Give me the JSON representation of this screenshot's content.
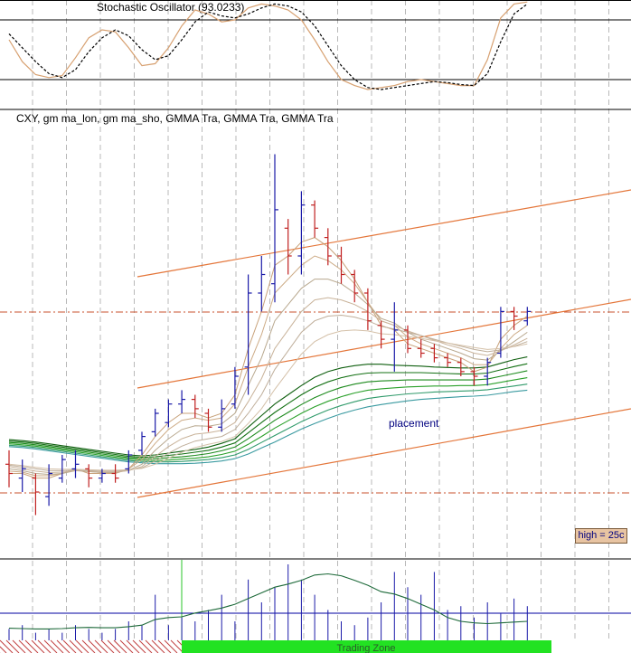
{
  "chart_data": [
    {
      "type": "line",
      "title": "Stochastic Oscillator (93.0233)",
      "levels": [
        80,
        20
      ],
      "series": [
        {
          "values": [
            60,
            38,
            25,
            22,
            24,
            42,
            62,
            70,
            68,
            52,
            34,
            36,
            52,
            74,
            90,
            86,
            78,
            80,
            92,
            96,
            94,
            90,
            80,
            60,
            38,
            20,
            14,
            10,
            12,
            14,
            18,
            20,
            18,
            16,
            14,
            14,
            40,
            82,
            96,
            98
          ],
          "color": "#d7a070"
        },
        {
          "values": [
            66,
            52,
            38,
            26,
            22,
            30,
            48,
            62,
            70,
            64,
            50,
            40,
            44,
            60,
            78,
            88,
            84,
            82,
            86,
            92,
            96,
            94,
            88,
            74,
            54,
            34,
            20,
            12,
            10,
            12,
            14,
            16,
            18,
            17,
            15,
            14,
            26,
            58,
            86,
            96
          ],
          "color": "#000000",
          "style": "dashed"
        }
      ]
    },
    {
      "type": "bar",
      "title": "CXY, gm ma_lon, gm ma_sho, GMMA Tra, GMMA Tra, GMMA Tra",
      "annotations": [
        "placement",
        "high = 25c"
      ],
      "bars": [
        {
          "high": 8.8,
          "low": 8.0,
          "open": 8.5,
          "close": 8.3
        },
        {
          "high": 8.6,
          "low": 7.9,
          "open": 8.2,
          "close": 8.4
        },
        {
          "high": 8.3,
          "low": 7.4,
          "open": 8.2,
          "close": 7.9
        },
        {
          "high": 8.5,
          "low": 7.6,
          "open": 7.8,
          "close": 8.3
        },
        {
          "high": 8.7,
          "low": 8.1,
          "open": 8.2,
          "close": 8.6
        },
        {
          "high": 8.8,
          "low": 8.2,
          "open": 8.4,
          "close": 8.5
        },
        {
          "high": 8.5,
          "low": 8.0,
          "open": 8.4,
          "close": 8.2
        },
        {
          "high": 8.4,
          "low": 8.1,
          "open": 8.2,
          "close": 8.3
        },
        {
          "high": 8.5,
          "low": 8.1,
          "open": 8.3,
          "close": 8.2
        },
        {
          "high": 8.8,
          "low": 8.3,
          "open": 8.4,
          "close": 8.7
        },
        {
          "high": 9.2,
          "low": 8.7,
          "open": 8.8,
          "close": 9.1
        },
        {
          "high": 9.7,
          "low": 9.1,
          "open": 9.2,
          "close": 9.6
        },
        {
          "high": 9.9,
          "low": 9.3,
          "open": 9.4,
          "close": 9.8
        },
        {
          "high": 10.1,
          "low": 9.6,
          "open": 9.8,
          "close": 9.9
        },
        {
          "high": 10.0,
          "low": 9.5,
          "open": 9.9,
          "close": 9.7
        },
        {
          "high": 9.7,
          "low": 9.2,
          "open": 9.6,
          "close": 9.3
        },
        {
          "high": 9.9,
          "low": 9.2,
          "open": 9.3,
          "close": 9.7
        },
        {
          "high": 10.6,
          "low": 9.7,
          "open": 9.8,
          "close": 10.4
        },
        {
          "high": 12.6,
          "low": 10.0,
          "open": 10.6,
          "close": 12.2
        },
        {
          "high": 13.0,
          "low": 11.8,
          "open": 12.2,
          "close": 12.6
        },
        {
          "high": 15.2,
          "low": 12.0,
          "open": 12.4,
          "close": 14.0
        },
        {
          "high": 13.8,
          "low": 12.6,
          "open": 13.6,
          "close": 13.0
        },
        {
          "high": 14.4,
          "low": 12.6,
          "open": 13.0,
          "close": 14.1
        },
        {
          "high": 14.2,
          "low": 13.4,
          "open": 14.1,
          "close": 13.6
        },
        {
          "high": 13.6,
          "low": 12.8,
          "open": 13.4,
          "close": 13.0
        },
        {
          "high": 13.2,
          "low": 12.4,
          "open": 13.0,
          "close": 12.6
        },
        {
          "high": 12.7,
          "low": 12.0,
          "open": 12.6,
          "close": 12.2
        },
        {
          "high": 12.3,
          "low": 11.4,
          "open": 12.2,
          "close": 11.6
        },
        {
          "high": 11.6,
          "low": 11.0,
          "open": 11.5,
          "close": 11.2
        },
        {
          "high": 12.0,
          "low": 10.5,
          "open": 11.2,
          "close": 11.4
        },
        {
          "high": 11.5,
          "low": 10.9,
          "open": 11.4,
          "close": 11.0
        },
        {
          "high": 11.2,
          "low": 10.8,
          "open": 11.0,
          "close": 10.9
        },
        {
          "high": 11.1,
          "low": 10.7,
          "open": 11.0,
          "close": 10.8
        },
        {
          "high": 10.9,
          "low": 10.6,
          "open": 10.8,
          "close": 10.7
        },
        {
          "high": 10.8,
          "low": 10.4,
          "open": 10.7,
          "close": 10.5
        },
        {
          "high": 10.6,
          "low": 10.2,
          "open": 10.5,
          "close": 10.4
        },
        {
          "high": 10.8,
          "low": 10.2,
          "open": 10.4,
          "close": 10.7
        },
        {
          "high": 11.9,
          "low": 10.8,
          "open": 10.9,
          "close": 11.8
        },
        {
          "high": 11.9,
          "low": 11.4,
          "open": 11.8,
          "close": 11.7
        },
        {
          "high": 11.9,
          "low": 11.5,
          "open": 11.6,
          "close": 11.8
        }
      ],
      "ema_short": [
        [
          8.3,
          8.3,
          8.2,
          8.2,
          8.3,
          8.4,
          8.3,
          8.3,
          8.3,
          8.4,
          8.7,
          9.1,
          9.4,
          9.6,
          9.6,
          9.5,
          9.6,
          10.0,
          11.0,
          11.8,
          12.8,
          13.0,
          13.3,
          13.4,
          13.2,
          12.9,
          12.5,
          12.0,
          11.5,
          11.4,
          11.1,
          11.0,
          10.9,
          10.8,
          10.7,
          10.5,
          10.6,
          11.2,
          11.5,
          11.7
        ],
        [
          8.35,
          8.33,
          8.25,
          8.25,
          8.3,
          8.38,
          8.34,
          8.32,
          8.32,
          8.4,
          8.6,
          8.95,
          9.25,
          9.45,
          9.5,
          9.45,
          9.5,
          9.8,
          10.6,
          11.3,
          12.2,
          12.5,
          12.8,
          13.0,
          12.9,
          12.7,
          12.4,
          12.0,
          11.6,
          11.5,
          11.25,
          11.1,
          11.0,
          10.9,
          10.8,
          10.65,
          10.65,
          11.0,
          11.3,
          11.5
        ],
        [
          8.4,
          8.36,
          8.3,
          8.28,
          8.3,
          8.36,
          8.34,
          8.32,
          8.32,
          8.37,
          8.5,
          8.8,
          9.05,
          9.25,
          9.33,
          9.32,
          9.37,
          9.6,
          10.2,
          10.8,
          11.6,
          11.95,
          12.3,
          12.5,
          12.5,
          12.4,
          12.2,
          11.95,
          11.65,
          11.55,
          11.35,
          11.2,
          11.1,
          11.0,
          10.9,
          10.78,
          10.75,
          10.95,
          11.15,
          11.35
        ],
        [
          8.45,
          8.4,
          8.35,
          8.32,
          8.33,
          8.36,
          8.35,
          8.33,
          8.33,
          8.36,
          8.45,
          8.67,
          8.88,
          9.05,
          9.15,
          9.18,
          9.23,
          9.4,
          9.85,
          10.35,
          11.0,
          11.4,
          11.8,
          12.05,
          12.1,
          12.05,
          11.95,
          11.8,
          11.6,
          11.5,
          11.38,
          11.28,
          11.18,
          11.08,
          11.0,
          10.9,
          10.85,
          10.95,
          11.08,
          11.22
        ],
        [
          8.48,
          8.44,
          8.4,
          8.36,
          8.36,
          8.37,
          8.36,
          8.35,
          8.35,
          8.37,
          8.42,
          8.57,
          8.74,
          8.89,
          9.0,
          9.05,
          9.1,
          9.25,
          9.6,
          10.0,
          10.55,
          10.95,
          11.35,
          11.6,
          11.7,
          11.72,
          11.68,
          11.6,
          11.48,
          11.42,
          11.35,
          11.28,
          11.2,
          11.12,
          11.05,
          10.98,
          10.93,
          10.97,
          11.05,
          11.15
        ],
        [
          8.5,
          8.47,
          8.43,
          8.4,
          8.39,
          8.39,
          8.38,
          8.37,
          8.37,
          8.38,
          8.41,
          8.5,
          8.63,
          8.76,
          8.86,
          8.93,
          8.99,
          9.1,
          9.38,
          9.7,
          10.12,
          10.5,
          10.88,
          11.15,
          11.3,
          11.38,
          11.4,
          11.38,
          11.32,
          11.3,
          11.26,
          11.22,
          11.17,
          11.12,
          11.07,
          11.02,
          10.98,
          11.0,
          11.04,
          11.1
        ]
      ],
      "ema_long": [
        [
          9.03,
          9.01,
          8.98,
          8.94,
          8.9,
          8.86,
          8.82,
          8.78,
          8.74,
          8.7,
          8.68,
          8.7,
          8.74,
          8.78,
          8.82,
          8.87,
          8.95,
          9.05,
          9.3,
          9.55,
          9.8,
          10.0,
          10.2,
          10.38,
          10.5,
          10.58,
          10.63,
          10.66,
          10.66,
          10.64,
          10.63,
          10.62,
          10.6,
          10.59,
          10.58,
          10.58,
          10.6,
          10.68,
          10.76,
          10.82
        ],
        [
          9.0,
          8.98,
          8.95,
          8.91,
          8.87,
          8.83,
          8.79,
          8.75,
          8.71,
          8.67,
          8.65,
          8.66,
          8.69,
          8.72,
          8.76,
          8.8,
          8.87,
          8.96,
          9.18,
          9.4,
          9.62,
          9.81,
          10.0,
          10.16,
          10.28,
          10.37,
          10.43,
          10.47,
          10.48,
          10.48,
          10.48,
          10.48,
          10.47,
          10.46,
          10.45,
          10.45,
          10.47,
          10.54,
          10.61,
          10.67
        ],
        [
          8.97,
          8.95,
          8.92,
          8.88,
          8.84,
          8.8,
          8.76,
          8.72,
          8.68,
          8.64,
          8.62,
          8.62,
          8.64,
          8.66,
          8.69,
          8.73,
          8.79,
          8.87,
          9.05,
          9.25,
          9.45,
          9.62,
          9.79,
          9.94,
          10.06,
          10.16,
          10.23,
          10.28,
          10.3,
          10.31,
          10.32,
          10.32,
          10.32,
          10.32,
          10.32,
          10.32,
          10.34,
          10.4,
          10.46,
          10.52
        ],
        [
          8.94,
          8.92,
          8.89,
          8.85,
          8.81,
          8.77,
          8.73,
          8.69,
          8.65,
          8.61,
          8.59,
          8.58,
          8.59,
          8.61,
          8.63,
          8.66,
          8.71,
          8.78,
          8.93,
          9.1,
          9.28,
          9.44,
          9.6,
          9.74,
          9.86,
          9.96,
          10.04,
          10.1,
          10.13,
          10.15,
          10.17,
          10.18,
          10.19,
          10.19,
          10.2,
          10.2,
          10.22,
          10.27,
          10.32,
          10.37
        ],
        [
          8.91,
          8.89,
          8.86,
          8.82,
          8.78,
          8.74,
          8.7,
          8.66,
          8.62,
          8.58,
          8.56,
          8.55,
          8.55,
          8.56,
          8.58,
          8.6,
          8.64,
          8.7,
          8.82,
          8.97,
          9.12,
          9.27,
          9.42,
          9.55,
          9.67,
          9.77,
          9.85,
          9.92,
          9.96,
          9.99,
          10.02,
          10.04,
          10.06,
          10.07,
          10.08,
          10.09,
          10.11,
          10.15,
          10.19,
          10.23
        ],
        [
          8.88,
          8.86,
          8.83,
          8.79,
          8.75,
          8.71,
          8.67,
          8.63,
          8.59,
          8.55,
          8.53,
          8.51,
          8.51,
          8.51,
          8.52,
          8.54,
          8.57,
          8.62,
          8.72,
          8.85,
          8.98,
          9.12,
          9.26,
          9.38,
          9.49,
          9.59,
          9.67,
          9.74,
          9.79,
          9.83,
          9.87,
          9.9,
          9.92,
          9.94,
          9.96,
          9.97,
          9.99,
          10.03,
          10.07,
          10.1
        ]
      ]
    },
    {
      "type": "bar",
      "title": "",
      "zone_label": "Trading Zone",
      "volume": [
        3,
        4,
        2,
        3,
        2,
        4,
        3,
        2,
        3,
        5,
        4,
        12,
        4,
        6,
        5,
        8,
        12,
        5,
        16,
        10,
        14,
        20,
        16,
        12,
        8,
        5,
        4,
        6,
        10,
        18,
        14,
        12,
        18,
        8,
        9,
        6,
        10,
        7,
        11,
        9
      ],
      "avg": [
        3.2,
        3.1,
        3.0,
        3.0,
        3.1,
        3.3,
        3.4,
        3.3,
        3.3,
        3.6,
        4.0,
        5.5,
        6.0,
        6.2,
        7.2,
        7.8,
        8.5,
        9.5,
        11.0,
        12.5,
        14.0,
        14.8,
        15.8,
        17.2,
        17.5,
        17.0,
        15.8,
        14.5,
        12.8,
        12.2,
        11.0,
        9.5,
        8.0,
        6.0,
        5.0,
        4.6,
        4.4,
        4.6,
        4.8,
        5.0
      ]
    }
  ]
}
